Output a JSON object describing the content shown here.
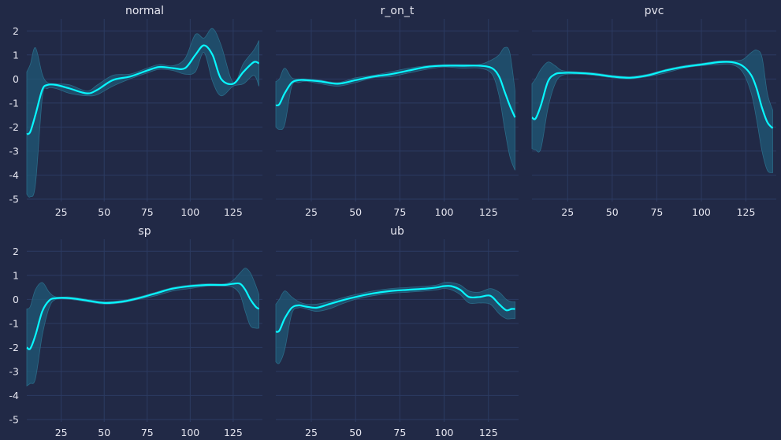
{
  "chart_data": [
    {
      "type": "line",
      "title": "normal",
      "xlim": [
        5,
        142
      ],
      "ylim": [
        -5.1,
        2.5
      ],
      "xticks": [
        25,
        50,
        75,
        100,
        125
      ],
      "yticks": [
        2,
        1,
        0,
        -1,
        -2,
        -3,
        -4,
        -5
      ],
      "x": [
        5,
        7,
        10,
        14,
        17,
        22,
        30,
        40,
        46,
        55,
        65,
        75,
        82,
        90,
        97,
        103,
        108,
        113,
        118,
        125,
        131,
        137,
        140
      ],
      "mean": [
        -2.3,
        -2.2,
        -1.5,
        -0.45,
        -0.25,
        -0.25,
        -0.4,
        -0.6,
        -0.45,
        -0.05,
        0.1,
        0.35,
        0.5,
        0.45,
        0.45,
        1.0,
        1.4,
        1.0,
        0.0,
        -0.2,
        0.3,
        0.7,
        0.65
      ],
      "upper": [
        0.3,
        0.6,
        1.3,
        0.2,
        -0.15,
        -0.2,
        -0.25,
        -0.5,
        -0.25,
        0.15,
        0.2,
        0.45,
        0.6,
        0.55,
        0.85,
        1.85,
        1.7,
        2.1,
        1.4,
        -0.15,
        0.65,
        1.2,
        1.6
      ],
      "lower": [
        -4.8,
        -4.9,
        -4.4,
        -0.8,
        -0.4,
        -0.4,
        -0.6,
        -0.7,
        -0.65,
        -0.3,
        0.0,
        0.25,
        0.4,
        0.35,
        0.2,
        0.3,
        1.1,
        -0.1,
        -0.7,
        -0.3,
        -0.2,
        0.15,
        -0.3
      ],
      "series_color": "#08f7fe"
    },
    {
      "type": "line",
      "title": "r_on_t",
      "xlim": [
        5,
        142
      ],
      "ylim": [
        -5.1,
        2.5
      ],
      "xticks": [
        25,
        50,
        75,
        100,
        125
      ],
      "yticks": [],
      "x": [
        5,
        7,
        10,
        14,
        18,
        22,
        30,
        40,
        50,
        60,
        70,
        80,
        90,
        100,
        110,
        120,
        127,
        131,
        134,
        137,
        140
      ],
      "mean": [
        -1.1,
        -1.05,
        -0.6,
        -0.15,
        -0.05,
        -0.05,
        -0.1,
        -0.2,
        -0.05,
        0.1,
        0.2,
        0.35,
        0.5,
        0.55,
        0.55,
        0.55,
        0.45,
        0.1,
        -0.5,
        -1.1,
        -1.6
      ],
      "upper": [
        -0.1,
        0.0,
        0.45,
        0.05,
        0.0,
        0.0,
        -0.05,
        -0.15,
        0.05,
        0.15,
        0.3,
        0.45,
        0.55,
        0.6,
        0.6,
        0.6,
        0.8,
        1.0,
        1.3,
        1.1,
        -0.5
      ],
      "lower": [
        -2.0,
        -2.1,
        -1.9,
        -0.3,
        -0.15,
        -0.1,
        -0.2,
        -0.3,
        -0.15,
        0.05,
        0.1,
        0.25,
        0.4,
        0.5,
        0.45,
        0.45,
        0.2,
        -0.7,
        -2.0,
        -3.2,
        -3.8
      ],
      "series_color": "#08f7fe"
    },
    {
      "type": "line",
      "title": "pvc",
      "xlim": [
        5,
        142
      ],
      "ylim": [
        -5.1,
        2.5
      ],
      "xticks": [
        25,
        50,
        75,
        100,
        125
      ],
      "yticks": [],
      "x": [
        5,
        7,
        10,
        14,
        18,
        22,
        30,
        40,
        50,
        60,
        70,
        80,
        90,
        100,
        110,
        117,
        123,
        128,
        131,
        134,
        137,
        140
      ],
      "mean": [
        -1.6,
        -1.65,
        -1.1,
        -0.1,
        0.2,
        0.25,
        0.25,
        0.2,
        0.1,
        0.05,
        0.15,
        0.35,
        0.5,
        0.6,
        0.7,
        0.7,
        0.55,
        0.15,
        -0.4,
        -1.2,
        -1.8,
        -2.05
      ],
      "upper": [
        -0.2,
        0.0,
        0.4,
        0.7,
        0.55,
        0.35,
        0.3,
        0.25,
        0.15,
        0.1,
        0.2,
        0.4,
        0.55,
        0.65,
        0.75,
        0.75,
        0.8,
        1.1,
        1.2,
        0.9,
        -0.6,
        -1.3
      ],
      "lower": [
        -2.9,
        -2.95,
        -2.9,
        -1.2,
        -0.2,
        0.15,
        0.2,
        0.15,
        0.05,
        0.0,
        0.1,
        0.25,
        0.45,
        0.55,
        0.6,
        0.6,
        0.3,
        -0.6,
        -1.7,
        -3.0,
        -3.8,
        -3.9
      ],
      "series_color": "#08f7fe"
    },
    {
      "type": "line",
      "title": "sp",
      "xlim": [
        5,
        142
      ],
      "ylim": [
        -5.1,
        2.5
      ],
      "xticks": [
        25,
        50,
        75,
        100,
        125
      ],
      "yticks": [
        2,
        1,
        0,
        -1,
        -2,
        -3,
        -4,
        -5
      ],
      "x": [
        5,
        7,
        10,
        14,
        18,
        22,
        30,
        40,
        50,
        60,
        70,
        80,
        90,
        100,
        110,
        120,
        125,
        129,
        132,
        135,
        138,
        140
      ],
      "mean": [
        -2.0,
        -2.05,
        -1.5,
        -0.5,
        -0.05,
        0.05,
        0.05,
        -0.05,
        -0.15,
        -0.1,
        0.05,
        0.25,
        0.45,
        0.55,
        0.6,
        0.6,
        0.65,
        0.65,
        0.4,
        0.0,
        -0.3,
        -0.4
      ],
      "upper": [
        -0.4,
        -0.3,
        0.4,
        0.7,
        0.3,
        0.1,
        0.1,
        0.0,
        -0.1,
        -0.05,
        0.1,
        0.3,
        0.5,
        0.6,
        0.65,
        0.65,
        0.8,
        1.1,
        1.3,
        1.1,
        0.6,
        0.2
      ],
      "lower": [
        -3.6,
        -3.5,
        -3.3,
        -1.5,
        -0.35,
        0.0,
        0.0,
        -0.1,
        -0.2,
        -0.15,
        0.0,
        0.15,
        0.35,
        0.45,
        0.55,
        0.55,
        0.5,
        0.2,
        -0.5,
        -1.1,
        -1.2,
        -1.2
      ],
      "series_color": "#08f7fe"
    },
    {
      "type": "line",
      "title": "ub",
      "xlim": [
        5,
        142
      ],
      "ylim": [
        -5.1,
        2.5
      ],
      "xticks": [
        25,
        50,
        75,
        100,
        125
      ],
      "yticks": [],
      "x": [
        5,
        7,
        10,
        14,
        18,
        22,
        28,
        35,
        42,
        50,
        60,
        70,
        80,
        90,
        96,
        100,
        104,
        109,
        114,
        120,
        126,
        131,
        135,
        138,
        140
      ],
      "mean": [
        -1.35,
        -1.3,
        -0.8,
        -0.35,
        -0.25,
        -0.3,
        -0.35,
        -0.2,
        -0.05,
        0.1,
        0.25,
        0.35,
        0.4,
        0.45,
        0.5,
        0.55,
        0.55,
        0.4,
        0.1,
        0.1,
        0.15,
        -0.2,
        -0.45,
        -0.4,
        -0.4
      ],
      "upper": [
        -0.2,
        0.0,
        0.35,
        0.1,
        -0.1,
        -0.2,
        -0.2,
        -0.1,
        0.05,
        0.2,
        0.35,
        0.45,
        0.5,
        0.55,
        0.6,
        0.7,
        0.7,
        0.6,
        0.35,
        0.3,
        0.45,
        0.3,
        0.0,
        -0.1,
        -0.1
      ],
      "lower": [
        -2.6,
        -2.65,
        -2.1,
        -0.6,
        -0.35,
        -0.4,
        -0.5,
        -0.4,
        -0.2,
        0.0,
        0.15,
        0.25,
        0.3,
        0.35,
        0.4,
        0.45,
        0.4,
        0.2,
        -0.15,
        -0.15,
        -0.2,
        -0.6,
        -0.8,
        -0.8,
        -0.8
      ],
      "series_color": "#08f7fe"
    }
  ]
}
